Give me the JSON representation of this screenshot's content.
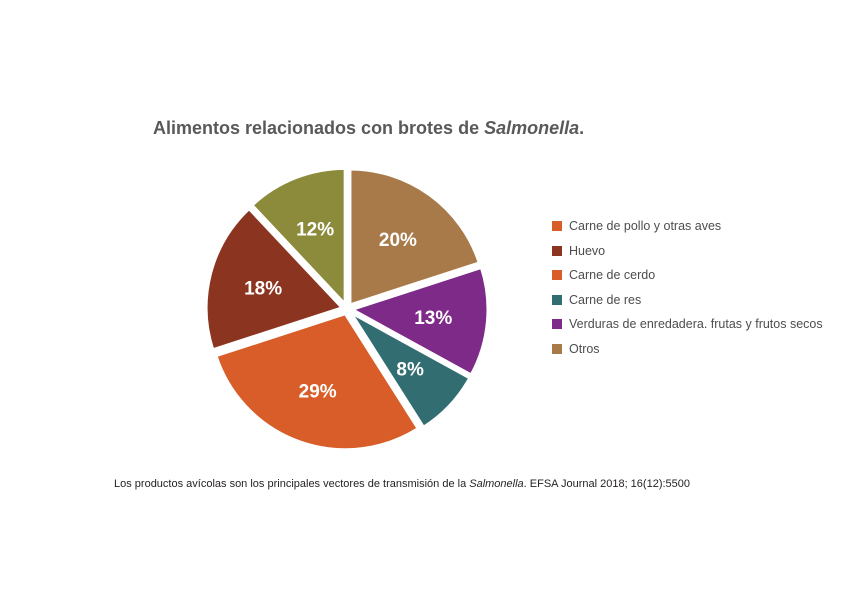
{
  "title": {
    "text": "Alimentos relacionados con brotes de ",
    "emphasis": "Salmonella",
    "end": "."
  },
  "chart_data": {
    "type": "pie",
    "title": "Alimentos relacionados con brotes de Salmonella.",
    "labels": [
      "Carne de pollo y otras aves",
      "Huevo",
      "Carne de cerdo",
      "Carne de res",
      "Verduras de enredadera. frutas y frutos secos",
      "Otros"
    ],
    "values": [
      12,
      18,
      29,
      8,
      13,
      20
    ],
    "data_labels": [
      "12%",
      "18%",
      "29%",
      "8%",
      "13%",
      "20%"
    ],
    "colors": [
      "#8c8b3b",
      "#8b3420",
      "#d85d28",
      "#316d71",
      "#7d2a88",
      "#a87a4a"
    ],
    "legend_colors": [
      "#d85d28",
      "#8b3420",
      "#d85d28",
      "#316d71",
      "#7d2a88",
      "#a87a4a"
    ],
    "start_angle_deg": 0,
    "direction": "counterclockwise",
    "exploded": true,
    "legend_position": "right"
  },
  "source": {
    "text": "Los productos avícolas son los principales vectores de transmisión de la ",
    "emphasis": "Salmonella",
    "end": ". EFSA Journal 2018; 16(12):5500"
  }
}
